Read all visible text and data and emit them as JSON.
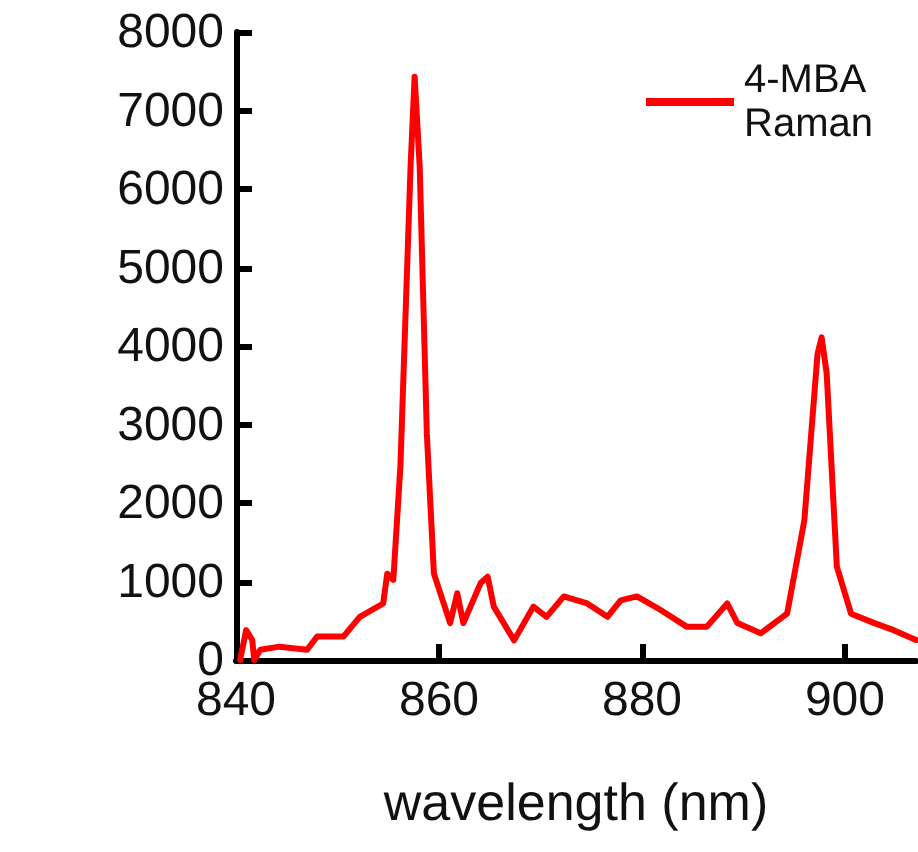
{
  "chart_data": {
    "type": "line",
    "xlabel": "wavelength (nm)",
    "x": [
      840.4,
      841.0,
      841.6,
      841.8,
      842.4,
      844.3,
      847.0,
      848.0,
      850.6,
      852.2,
      854.5,
      854.9,
      855.5,
      856.2,
      857.2,
      857.6,
      858.1,
      858.8,
      859.5,
      861.1,
      861.8,
      862.4,
      864.1,
      864.8,
      865.4,
      867.4,
      869.3,
      870.6,
      872.3,
      874.6,
      876.6,
      877.9,
      879.5,
      881.8,
      884.4,
      886.4,
      888.4,
      889.4,
      891.7,
      894.3,
      896.0,
      897.3,
      897.7,
      898.2,
      899.2,
      900.6,
      902.9,
      904.8,
      907
    ],
    "series": [
      {
        "name": "4-MBA Raman",
        "color": "#ff0000",
        "values": [
          0,
          380,
          255,
          0,
          130,
          170,
          130,
          300,
          300,
          550,
          720,
          1100,
          1020,
          2470,
          6290,
          7430,
          6290,
          2890,
          1100,
          470,
          850,
          470,
          980,
          1060,
          680,
          250,
          680,
          550,
          810,
          720,
          550,
          760,
          810,
          640,
          425,
          425,
          720,
          470,
          340,
          590,
          1780,
          3900,
          4110,
          3650,
          1190,
          590,
          470,
          380,
          255
        ]
      }
    ],
    "xlim": [
      840,
      907
    ],
    "xticks": [
      840,
      860,
      880,
      900
    ],
    "ylim": [
      0,
      8000
    ],
    "yticks": [
      0,
      1000,
      2000,
      3000,
      4000,
      5000,
      6000,
      7000,
      8000
    ],
    "grid": false,
    "legend": "top right",
    "marker": "none",
    "line_style": "solid"
  }
}
